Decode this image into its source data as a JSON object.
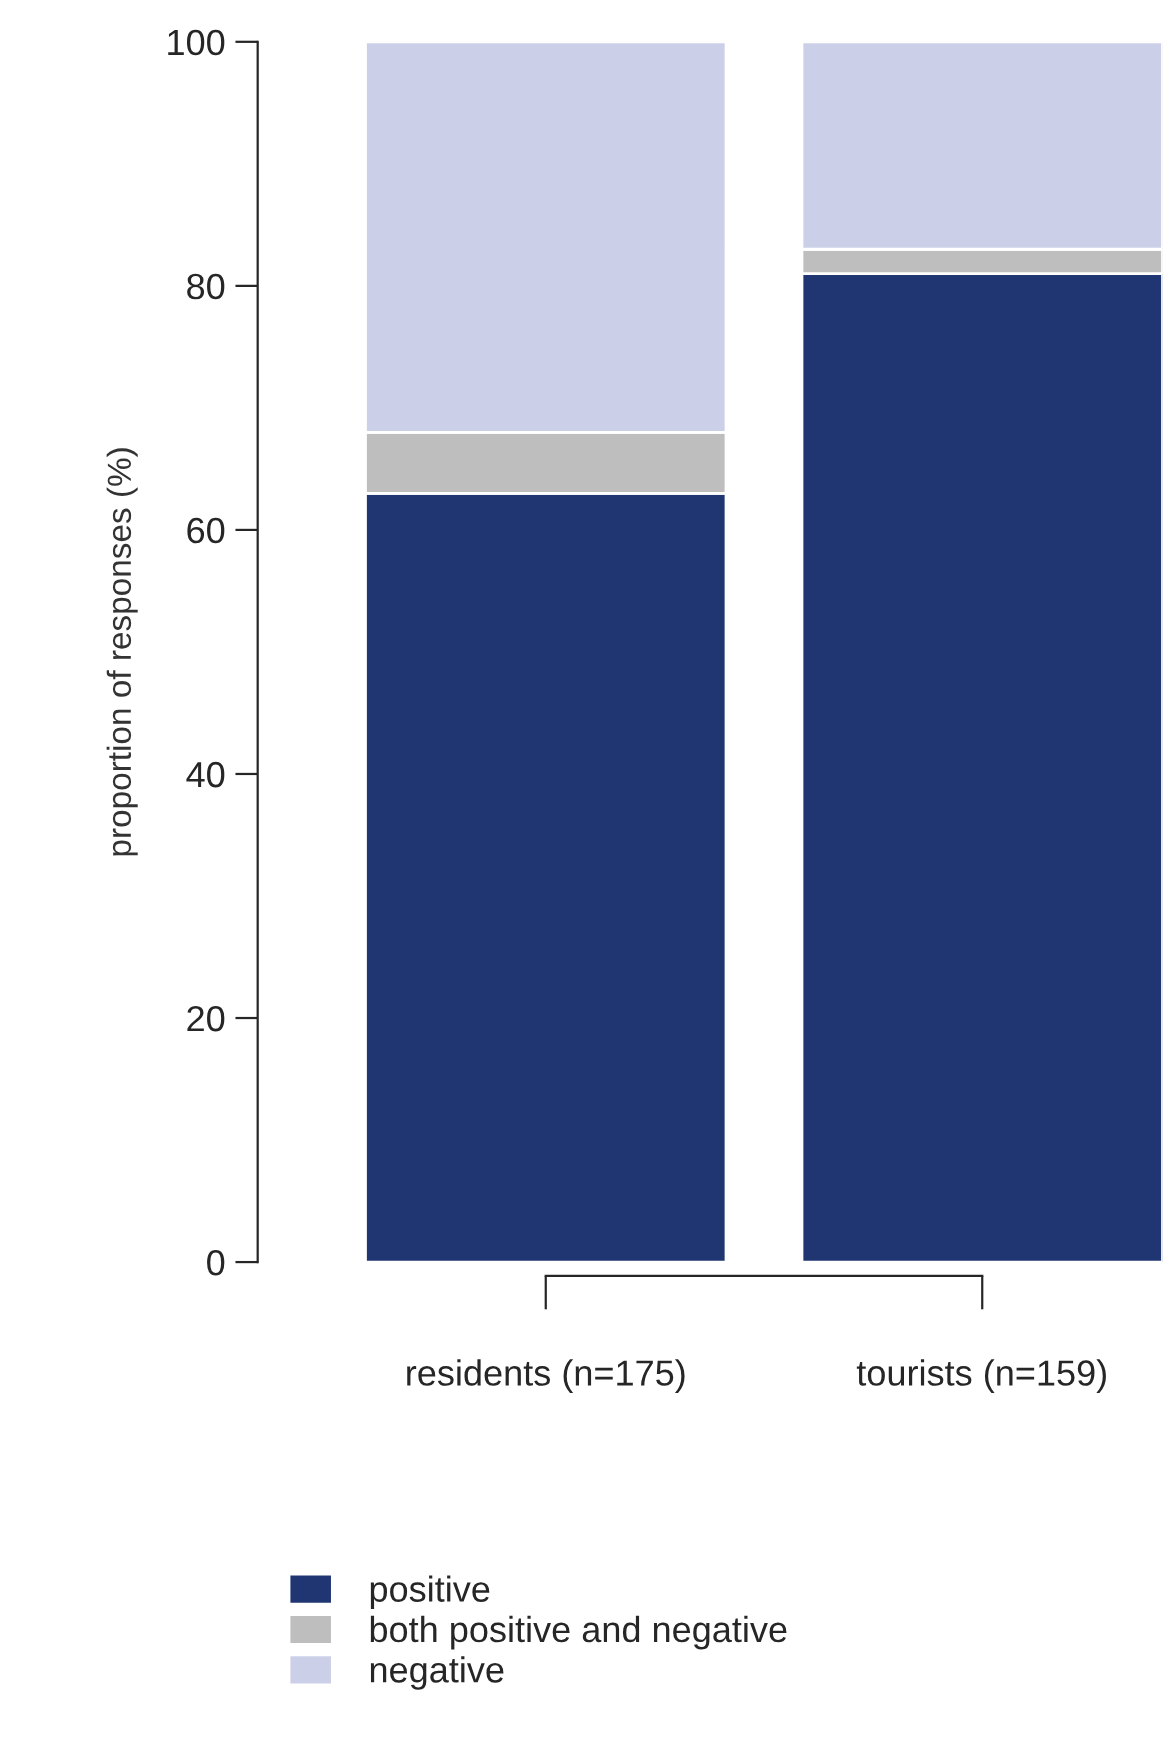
{
  "chart_data": {
    "type": "bar",
    "stacked": true,
    "ylabel": "proportion of responses (%)",
    "categories": [
      "residents (n=175)",
      "tourists (n=159)"
    ],
    "series": [
      {
        "name": "positive",
        "color": "#1f3672",
        "values": [
          63,
          81
        ]
      },
      {
        "name": "both positive and negative",
        "color": "#bebebe",
        "values": [
          5,
          2
        ]
      },
      {
        "name": "negative",
        "color": "#cccfe8",
        "values": [
          32,
          17
        ]
      }
    ],
    "ylim": [
      0,
      100
    ],
    "yticks": [
      0,
      20,
      40,
      60,
      80,
      100
    ],
    "grid": false,
    "legend": "bottom"
  }
}
